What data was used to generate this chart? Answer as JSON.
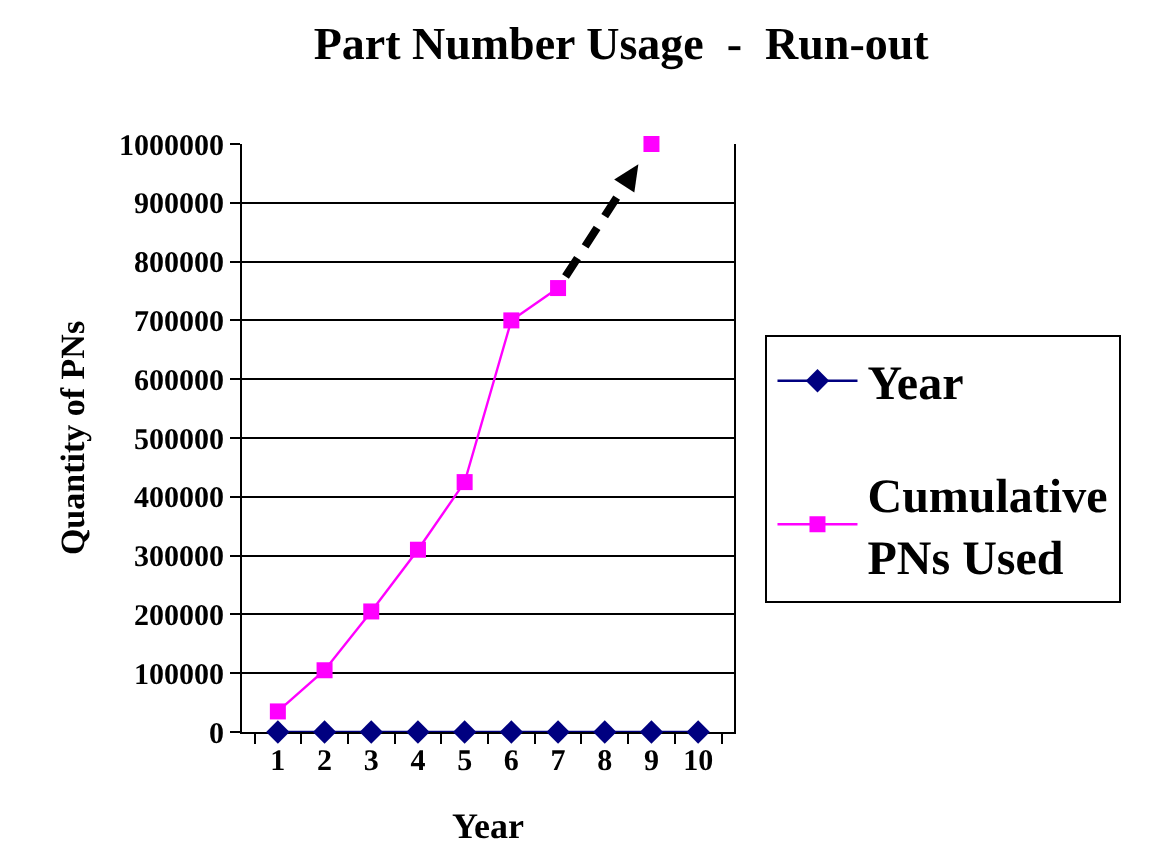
{
  "chart_data": {
    "type": "line",
    "title": "Part Number Usage  -  Run-out",
    "xlabel": "Year",
    "ylabel": "Quantity of PNs",
    "categories": [
      "1",
      "2",
      "3",
      "4",
      "5",
      "6",
      "7",
      "8",
      "9",
      "10"
    ],
    "series": [
      {
        "name": "Year",
        "color": "#000080",
        "marker": "diamond",
        "values": [
          0,
          0,
          0,
          0,
          0,
          0,
          0,
          0,
          0,
          0
        ]
      },
      {
        "name": "Cumulative PNs Used",
        "color": "#ff00ff",
        "marker": "square",
        "values": [
          35000,
          105000,
          205000,
          310000,
          425000,
          700000,
          755000,
          null,
          1000000,
          null
        ]
      }
    ],
    "ylim": [
      0,
      1000000
    ],
    "yticks": [
      0,
      100000,
      200000,
      300000,
      400000,
      500000,
      600000,
      700000,
      800000,
      900000,
      1000000
    ],
    "grid": "y",
    "legend": "right"
  }
}
